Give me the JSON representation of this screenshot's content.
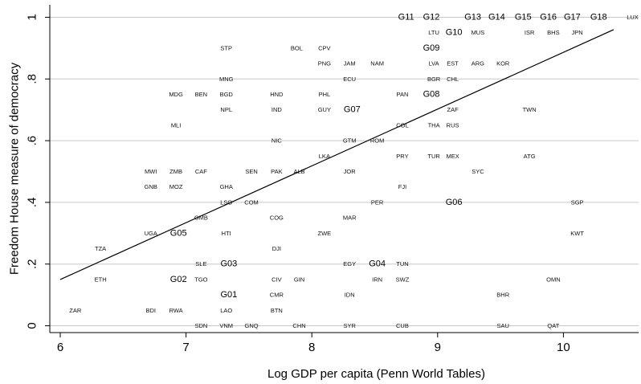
{
  "chart_data": {
    "type": "scatter",
    "title": "",
    "xlabel": "Log GDP per capita (Penn World Tables)",
    "ylabel": "Freedom House measure of democracy",
    "xlim": [
      5.95,
      10.65
    ],
    "ylim": [
      -0.03,
      1.05
    ],
    "x_ticks": [
      6,
      7,
      8,
      9,
      10
    ],
    "y_ticks": [
      0,
      0.2,
      0.4,
      0.6,
      0.8,
      1
    ],
    "x_tick_labels": [
      "6",
      "7",
      "8",
      "9",
      "10"
    ],
    "y_tick_labels": [
      "0",
      ".2",
      ".4",
      ".6",
      ".8",
      "1"
    ],
    "grid": "horizontal",
    "colors": {
      "points": "#111111",
      "highlight": "#3a4fa0",
      "fit_line": "#000000",
      "grid": "#c8c8c8"
    },
    "fit_line": {
      "x": [
        6,
        10.4
      ],
      "y": [
        0.15,
        0.96
      ]
    },
    "points": [
      {
        "label": "G11",
        "x": 8.75,
        "y": 1.0,
        "group": true
      },
      {
        "label": "G12",
        "x": 8.95,
        "y": 1.0,
        "group": true
      },
      {
        "label": "G13",
        "x": 9.28,
        "y": 1.0,
        "group": true
      },
      {
        "label": "G14",
        "x": 9.47,
        "y": 1.0,
        "group": true
      },
      {
        "label": "G15",
        "x": 9.68,
        "y": 1.0,
        "group": true
      },
      {
        "label": "G16",
        "x": 9.88,
        "y": 1.0,
        "group": true
      },
      {
        "label": "G17",
        "x": 10.07,
        "y": 1.0,
        "group": true
      },
      {
        "label": "G18",
        "x": 10.28,
        "y": 1.0,
        "group": true
      },
      {
        "label": "LUX",
        "x": 10.55,
        "y": 1.0
      },
      {
        "label": "LTU",
        "x": 8.97,
        "y": 0.95
      },
      {
        "label": "G10",
        "x": 9.13,
        "y": 0.95,
        "group": true
      },
      {
        "label": "MUS",
        "x": 9.32,
        "y": 0.95
      },
      {
        "label": "ISR",
        "x": 9.73,
        "y": 0.95
      },
      {
        "label": "BHS",
        "x": 9.92,
        "y": 0.95
      },
      {
        "label": "JPN",
        "x": 10.11,
        "y": 0.95
      },
      {
        "label": "STP",
        "x": 7.32,
        "y": 0.9
      },
      {
        "label": "BOL",
        "x": 7.88,
        "y": 0.9
      },
      {
        "label": "CPV",
        "x": 8.1,
        "y": 0.9
      },
      {
        "label": "G09",
        "x": 8.95,
        "y": 0.9,
        "group": true
      },
      {
        "label": "PNG",
        "x": 8.1,
        "y": 0.85
      },
      {
        "label": "JAM",
        "x": 8.3,
        "y": 0.85
      },
      {
        "label": "NAM",
        "x": 8.52,
        "y": 0.85
      },
      {
        "label": "LVA",
        "x": 8.97,
        "y": 0.85
      },
      {
        "label": "EST",
        "x": 9.12,
        "y": 0.85
      },
      {
        "label": "ARG",
        "x": 9.32,
        "y": 0.85
      },
      {
        "label": "KOR",
        "x": 9.52,
        "y": 0.85
      },
      {
        "label": "MNG",
        "x": 7.32,
        "y": 0.8
      },
      {
        "label": "ECU",
        "x": 8.3,
        "y": 0.8
      },
      {
        "label": "BGR",
        "x": 8.97,
        "y": 0.8
      },
      {
        "label": "CHL",
        "x": 9.12,
        "y": 0.8
      },
      {
        "label": "MDG",
        "x": 6.92,
        "y": 0.75
      },
      {
        "label": "BEN",
        "x": 7.12,
        "y": 0.75
      },
      {
        "label": "BGD",
        "x": 7.32,
        "y": 0.75
      },
      {
        "label": "HND",
        "x": 7.72,
        "y": 0.75
      },
      {
        "label": "PHL",
        "x": 8.1,
        "y": 0.75
      },
      {
        "label": "PAN",
        "x": 8.72,
        "y": 0.75
      },
      {
        "label": "G08",
        "x": 8.95,
        "y": 0.75,
        "group": true
      },
      {
        "label": "NPL",
        "x": 7.32,
        "y": 0.7
      },
      {
        "label": "IND",
        "x": 7.72,
        "y": 0.7
      },
      {
        "label": "GUY",
        "x": 8.1,
        "y": 0.7
      },
      {
        "label": "G07",
        "x": 8.32,
        "y": 0.7,
        "group": true
      },
      {
        "label": "ZAF",
        "x": 9.12,
        "y": 0.7
      },
      {
        "label": "TWN",
        "x": 9.73,
        "y": 0.7
      },
      {
        "label": "MLI",
        "x": 6.92,
        "y": 0.65
      },
      {
        "label": "COL",
        "x": 8.72,
        "y": 0.65
      },
      {
        "label": "THA",
        "x": 8.97,
        "y": 0.65
      },
      {
        "label": "RUS",
        "x": 9.12,
        "y": 0.65
      },
      {
        "label": "NIC",
        "x": 7.72,
        "y": 0.6
      },
      {
        "label": "GTM",
        "x": 8.3,
        "y": 0.6
      },
      {
        "label": "ROM",
        "x": 8.52,
        "y": 0.6
      },
      {
        "label": "LKA",
        "x": 8.1,
        "y": 0.55,
        "highlight": true
      },
      {
        "label": "PRY",
        "x": 8.72,
        "y": 0.55
      },
      {
        "label": "TUR",
        "x": 8.97,
        "y": 0.55
      },
      {
        "label": "MEX",
        "x": 9.12,
        "y": 0.55
      },
      {
        "label": "ATG",
        "x": 9.73,
        "y": 0.55
      },
      {
        "label": "MWI",
        "x": 6.72,
        "y": 0.5
      },
      {
        "label": "ZMB",
        "x": 6.92,
        "y": 0.5
      },
      {
        "label": "CAF",
        "x": 7.12,
        "y": 0.5
      },
      {
        "label": "SEN",
        "x": 7.52,
        "y": 0.5
      },
      {
        "label": "PAK",
        "x": 7.72,
        "y": 0.5
      },
      {
        "label": "ALB",
        "x": 7.9,
        "y": 0.5
      },
      {
        "label": "JOR",
        "x": 8.3,
        "y": 0.5
      },
      {
        "label": "SYC",
        "x": 9.32,
        "y": 0.5
      },
      {
        "label": "GNB",
        "x": 6.72,
        "y": 0.45
      },
      {
        "label": "MOZ",
        "x": 6.92,
        "y": 0.45
      },
      {
        "label": "GHA",
        "x": 7.32,
        "y": 0.45
      },
      {
        "label": "FJI",
        "x": 8.72,
        "y": 0.45
      },
      {
        "label": "LSO",
        "x": 7.32,
        "y": 0.4
      },
      {
        "label": "COM",
        "x": 7.52,
        "y": 0.4
      },
      {
        "label": "PER",
        "x": 8.52,
        "y": 0.4
      },
      {
        "label": "G06",
        "x": 9.13,
        "y": 0.4,
        "group": true
      },
      {
        "label": "SGP",
        "x": 10.11,
        "y": 0.4
      },
      {
        "label": "GMB",
        "x": 7.12,
        "y": 0.35
      },
      {
        "label": "COG",
        "x": 7.72,
        "y": 0.35
      },
      {
        "label": "MAR",
        "x": 8.3,
        "y": 0.35
      },
      {
        "label": "UGA",
        "x": 6.72,
        "y": 0.3
      },
      {
        "label": "G05",
        "x": 6.94,
        "y": 0.3,
        "group": true
      },
      {
        "label": "HTI",
        "x": 7.32,
        "y": 0.3
      },
      {
        "label": "ZWE",
        "x": 8.1,
        "y": 0.3
      },
      {
        "label": "KWT",
        "x": 10.11,
        "y": 0.3
      },
      {
        "label": "TZA",
        "x": 6.32,
        "y": 0.25
      },
      {
        "label": "DJI",
        "x": 7.72,
        "y": 0.25
      },
      {
        "label": "SLE",
        "x": 7.12,
        "y": 0.2
      },
      {
        "label": "G03",
        "x": 7.34,
        "y": 0.2,
        "group": true
      },
      {
        "label": "EGY",
        "x": 8.3,
        "y": 0.2
      },
      {
        "label": "G04",
        "x": 8.52,
        "y": 0.2,
        "group": true
      },
      {
        "label": "TUN",
        "x": 8.72,
        "y": 0.2
      },
      {
        "label": "ETH",
        "x": 6.32,
        "y": 0.15
      },
      {
        "label": "G02",
        "x": 6.94,
        "y": 0.15,
        "group": true
      },
      {
        "label": "TGO",
        "x": 7.12,
        "y": 0.15
      },
      {
        "label": "CIV",
        "x": 7.72,
        "y": 0.15
      },
      {
        "label": "GIN",
        "x": 7.9,
        "y": 0.15
      },
      {
        "label": "IRN",
        "x": 8.52,
        "y": 0.15
      },
      {
        "label": "SWZ",
        "x": 8.72,
        "y": 0.15
      },
      {
        "label": "OMN",
        "x": 9.92,
        "y": 0.15
      },
      {
        "label": "G01",
        "x": 7.34,
        "y": 0.1,
        "group": true
      },
      {
        "label": "CMR",
        "x": 7.72,
        "y": 0.1
      },
      {
        "label": "IDN",
        "x": 8.3,
        "y": 0.1
      },
      {
        "label": "BHR",
        "x": 9.52,
        "y": 0.1
      },
      {
        "label": "ZAR",
        "x": 6.12,
        "y": 0.05
      },
      {
        "label": "BDI",
        "x": 6.72,
        "y": 0.05
      },
      {
        "label": "RWA",
        "x": 6.92,
        "y": 0.05
      },
      {
        "label": "LAO",
        "x": 7.32,
        "y": 0.05
      },
      {
        "label": "BTN",
        "x": 7.72,
        "y": 0.05
      },
      {
        "label": "SDN",
        "x": 7.12,
        "y": 0.0
      },
      {
        "label": "VNM",
        "x": 7.32,
        "y": 0.0
      },
      {
        "label": "GNQ",
        "x": 7.52,
        "y": 0.0
      },
      {
        "label": "CHN",
        "x": 7.9,
        "y": 0.0
      },
      {
        "label": "SYR",
        "x": 8.3,
        "y": 0.0
      },
      {
        "label": "CUB",
        "x": 8.72,
        "y": 0.0
      },
      {
        "label": "SAU",
        "x": 9.52,
        "y": 0.0
      },
      {
        "label": "QAT",
        "x": 9.92,
        "y": 0.0
      }
    ]
  }
}
